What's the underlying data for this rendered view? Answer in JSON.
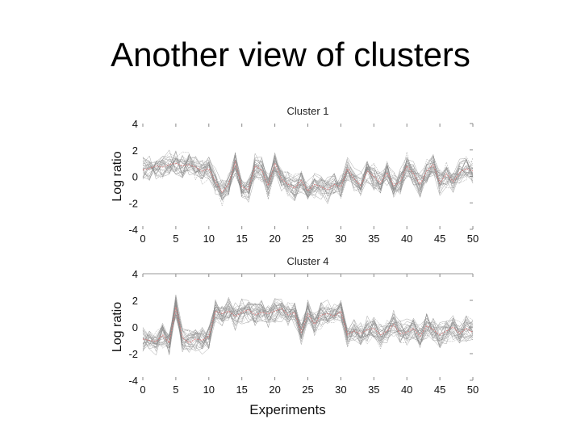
{
  "slide": {
    "title": "Another view of clusters"
  },
  "chart_data": [
    {
      "type": "line",
      "title": "Cluster 1",
      "ylabel": "Log ratio",
      "xlabel": "",
      "xlim": [
        0,
        50
      ],
      "ylim": [
        -4,
        4
      ],
      "x_ticks": [
        "0",
        "5",
        "10",
        "15",
        "20",
        "25",
        "30",
        "35",
        "40",
        "45",
        "50"
      ],
      "y_ticks": [
        "4",
        "2",
        "0",
        "-2",
        "-4"
      ],
      "grid": false,
      "line_color": "#8a8a8a",
      "mean_color": "#d98080",
      "x": [
        0,
        1,
        2,
        3,
        4,
        5,
        6,
        7,
        8,
        9,
        10,
        11,
        12,
        13,
        14,
        15,
        16,
        17,
        18,
        19,
        20,
        21,
        22,
        23,
        24,
        25,
        26,
        27,
        28,
        29,
        30,
        31,
        32,
        33,
        34,
        35,
        36,
        37,
        38,
        39,
        40,
        41,
        42,
        43,
        44,
        45,
        46,
        47,
        48,
        49,
        50
      ],
      "mean_series": [
        0.5,
        0.6,
        0.8,
        0.7,
        0.9,
        1.0,
        0.8,
        0.9,
        0.7,
        0.4,
        0.6,
        -0.4,
        -1.2,
        -0.6,
        1.1,
        -0.8,
        -1.0,
        0.8,
        0.5,
        -0.7,
        1.0,
        -0.2,
        -0.6,
        -0.9,
        -0.3,
        -1.1,
        -0.6,
        -0.8,
        -1.0,
        -0.6,
        -0.8,
        0.6,
        -0.2,
        -0.7,
        0.4,
        0.0,
        -0.5,
        0.3,
        -0.7,
        -0.4,
        0.8,
        0.2,
        -0.6,
        0.4,
        0.9,
        -0.5,
        0.2,
        -0.4,
        0.3,
        0.6,
        0.4
      ]
    },
    {
      "type": "line",
      "title": "Cluster 4",
      "ylabel": "Log ratio",
      "xlabel": "Experiments",
      "xlim": [
        0,
        50
      ],
      "ylim": [
        -4,
        4
      ],
      "x_ticks": [
        "0",
        "5",
        "10",
        "15",
        "20",
        "25",
        "30",
        "35",
        "40",
        "45",
        "50"
      ],
      "y_ticks": [
        "4",
        "2",
        "0",
        "-2",
        "-4"
      ],
      "grid": false,
      "line_color": "#8a8a8a",
      "mean_color": "#d98080",
      "x": [
        0,
        1,
        2,
        3,
        4,
        5,
        6,
        7,
        8,
        9,
        10,
        11,
        12,
        13,
        14,
        15,
        16,
        17,
        18,
        19,
        20,
        21,
        22,
        23,
        24,
        25,
        26,
        27,
        28,
        29,
        30,
        31,
        32,
        33,
        34,
        35,
        36,
        37,
        38,
        39,
        40,
        41,
        42,
        43,
        44,
        45,
        46,
        47,
        48,
        49,
        50
      ],
      "mean_series": [
        -0.9,
        -1.0,
        -1.1,
        -0.6,
        -1.2,
        1.5,
        -0.8,
        -1.2,
        -0.9,
        -1.0,
        -0.7,
        1.2,
        1.0,
        1.2,
        0.8,
        1.1,
        1.3,
        0.9,
        1.1,
        1.0,
        1.2,
        1.4,
        0.9,
        1.1,
        -0.4,
        1.0,
        0.2,
        0.9,
        1.0,
        0.8,
        1.2,
        -0.6,
        -0.3,
        -0.5,
        -0.2,
        -0.1,
        -0.6,
        -0.3,
        0.2,
        -0.5,
        -0.4,
        -0.1,
        -0.7,
        0.1,
        -0.2,
        -0.6,
        -0.3,
        0.0,
        -0.5,
        -0.1,
        -0.4
      ]
    }
  ]
}
